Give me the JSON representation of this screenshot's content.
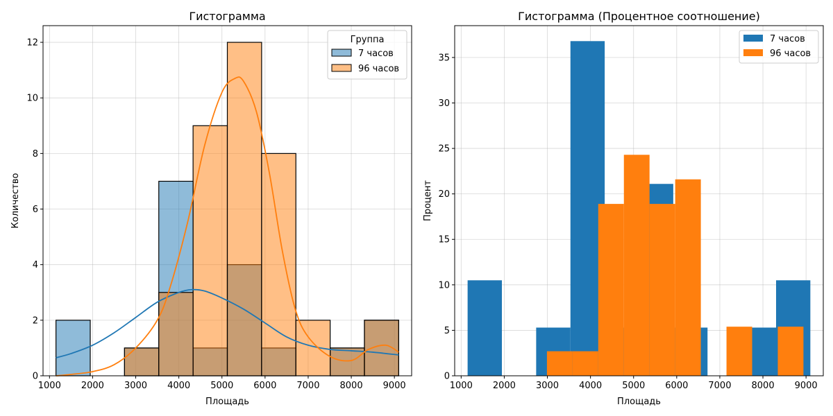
{
  "chart_data": [
    {
      "type": "bar",
      "title": "Гистограмма",
      "xlabel": "Площадь",
      "ylabel": "Количество",
      "xlim": [
        850,
        9400
      ],
      "ylim": [
        0,
        12.6
      ],
      "xticks": [
        1000,
        2000,
        3000,
        4000,
        5000,
        6000,
        7000,
        8000,
        9000
      ],
      "yticks": [
        0,
        2,
        4,
        6,
        8,
        10,
        12
      ],
      "grid": true,
      "legend": {
        "title": "Группа",
        "placement": "top-right"
      },
      "bin_edges": [
        1150,
        1945,
        2740,
        3535,
        4330,
        5125,
        5920,
        6715,
        7510,
        8305,
        9100
      ],
      "series": [
        {
          "name": "7 часов",
          "color": "#1f77b4",
          "values": [
            2,
            0,
            1,
            7,
            1,
            4,
            1,
            0,
            1,
            2
          ],
          "kde_x": [
            1150,
            1500,
            2000,
            2500,
            3000,
            3500,
            4000,
            4300,
            4600,
            5000,
            5500,
            6000,
            6500,
            7000,
            7500,
            8000,
            8500,
            9100
          ],
          "kde_y": [
            0.65,
            0.8,
            1.1,
            1.55,
            2.1,
            2.65,
            3.0,
            3.1,
            3.05,
            2.8,
            2.4,
            1.9,
            1.4,
            1.1,
            0.95,
            0.9,
            0.85,
            0.75
          ]
        },
        {
          "name": "96 часов",
          "color": "#ff7f0e",
          "values": [
            0,
            0,
            1,
            3,
            9,
            12,
            8,
            2,
            1,
            2
          ],
          "kde_x": [
            1150,
            1500,
            2000,
            2500,
            3000,
            3500,
            3800,
            4200,
            4600,
            5000,
            5300,
            5500,
            5800,
            6100,
            6400,
            6700,
            7000,
            7500,
            8000,
            8400,
            8800,
            9100
          ],
          "kde_y": [
            0.0,
            0.05,
            0.15,
            0.4,
            1.0,
            2.0,
            3.2,
            5.5,
            8.3,
            10.2,
            10.7,
            10.6,
            9.5,
            7.3,
            4.5,
            2.4,
            1.4,
            0.7,
            0.55,
            0.95,
            1.1,
            0.85
          ]
        }
      ]
    },
    {
      "type": "bar",
      "title": "Гистограмма (Процентное соотношение)",
      "xlabel": "Площадь",
      "ylabel": "Процент",
      "xlim": [
        850,
        9400
      ],
      "ylim": [
        0,
        38.5
      ],
      "xticks": [
        1000,
        2000,
        3000,
        4000,
        5000,
        6000,
        7000,
        8000,
        9000
      ],
      "yticks": [
        0,
        5,
        10,
        15,
        20,
        25,
        30,
        35
      ],
      "grid": true,
      "legend": {
        "placement": "top-right"
      },
      "series": [
        {
          "name": "7 часов",
          "color": "#1f77b4",
          "bin_edges": [
            1150,
            1945,
            2740,
            3535,
            4330,
            5125,
            5920,
            6715,
            7510,
            8305,
            9100
          ],
          "values": [
            10.5,
            0,
            5.3,
            36.8,
            5.3,
            21.1,
            5.3,
            0,
            5.3,
            10.5
          ]
        },
        {
          "name": "96 часов",
          "color": "#ff7f0e",
          "bin_edges": [
            2990,
            3585,
            4180,
            4775,
            5370,
            5965,
            6560,
            7155,
            7750,
            8345,
            8940
          ],
          "values": [
            2.7,
            2.7,
            18.9,
            24.3,
            18.9,
            21.6,
            0,
            5.4,
            0,
            5.4
          ]
        }
      ]
    }
  ]
}
